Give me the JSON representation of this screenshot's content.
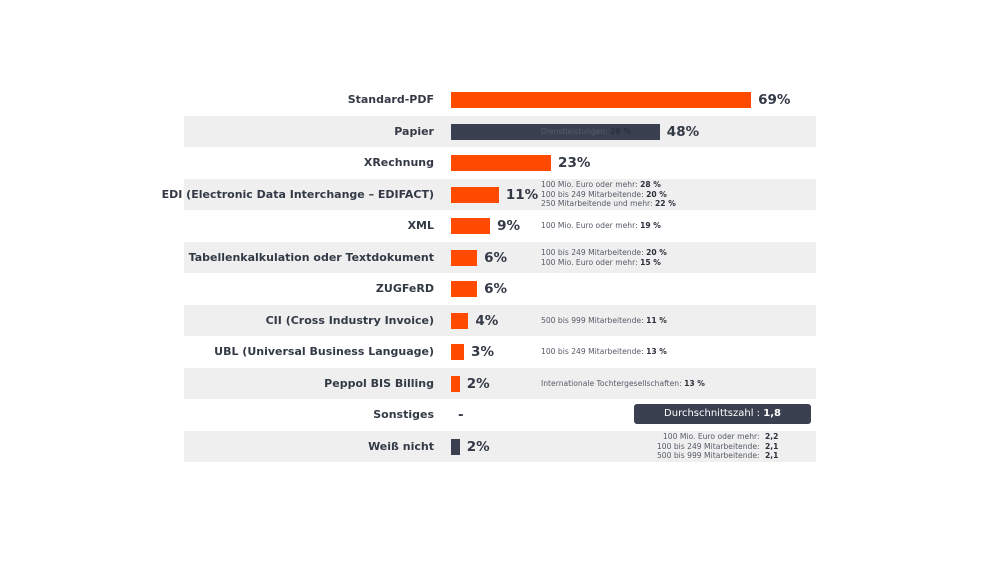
{
  "chart_data": {
    "type": "bar",
    "orientation": "horizontal",
    "xlim": [
      0,
      100
    ],
    "colors": {
      "orange": "#ff4a00",
      "dark": "#3a4050"
    },
    "categories": [
      "Standard-PDF",
      "Papier",
      "XRechnung",
      "EDI (Electronic Data Interchange – EDIFACT)",
      "XML",
      "Tabellenkalkulation oder Textdokument",
      "ZUGFeRD",
      "CII (Cross Industry Invoice)",
      "UBL (Universal Business Language)",
      "Peppol BIS Billing",
      "Sonstiges",
      "Weiß nicht"
    ],
    "values": [
      69,
      48,
      23,
      11,
      9,
      6,
      6,
      4,
      3,
      2,
      null,
      2
    ],
    "value_labels": [
      "69%",
      "48%",
      "23%",
      "11%",
      "9%",
      "6%",
      "6%",
      "4%",
      "3%",
      "2%",
      "-",
      "2%"
    ],
    "bar_colors": [
      "orange",
      "dark",
      "orange",
      "orange",
      "orange",
      "orange",
      "orange",
      "orange",
      "orange",
      "orange",
      "orange",
      "dark"
    ],
    "annotations": [
      null,
      [
        {
          "text": "Dienstleistungen:",
          "value": "29 %"
        }
      ],
      null,
      [
        {
          "text": "100 Mio. Euro oder mehr:",
          "value": "28 %"
        },
        {
          "text": "100 bis 249 Mitarbeitende:",
          "value": "20 %"
        },
        {
          "text": "250 Mitarbeitende und mehr:",
          "value": "22 %"
        }
      ],
      [
        {
          "text": "100 Mio. Euro oder mehr:",
          "value": "19 %"
        }
      ],
      [
        {
          "text": "100 bis 249 Mitarbeitende:",
          "value": "20 %"
        },
        {
          "text": "100 Mio. Euro oder mehr:",
          "value": "15 %"
        }
      ],
      null,
      [
        {
          "text": "500 bis 999 Mitarbeitende:",
          "value": "11 %"
        }
      ],
      [
        {
          "text": "100 bis 249 Mitarbeitende:",
          "value": "13 %"
        }
      ],
      [
        {
          "text": "Internationale Tochtergesellschaften:",
          "value": "13 %"
        }
      ],
      null,
      [
        {
          "text": "100 Mio. Euro oder mehr:",
          "value": "2,2"
        },
        {
          "text": "100 bis 249 Mitarbeitende:",
          "value": "2,1"
        },
        {
          "text": "500 bis 999 Mitarbeitende:",
          "value": "2,1"
        }
      ]
    ],
    "average": {
      "label": "Durchschnittszahl :",
      "value": "1,8"
    }
  }
}
